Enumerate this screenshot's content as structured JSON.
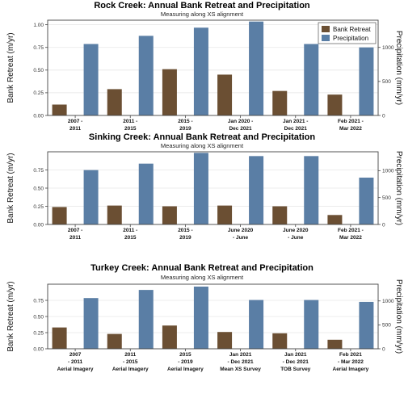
{
  "colors": {
    "bank_retreat": "#6b4f33",
    "precipitation": "#5a7ea5",
    "grid": "#e6e6e6",
    "frame": "#444444"
  },
  "chart_data": [
    {
      "type": "bar",
      "title": "Rock Creek: Annual Bank Retreat and Precipitation",
      "subtitle": "Measuring along XS alignment",
      "ylabel": "Bank Retreat (m/yr)",
      "y2label": "Precipitation (mm/yr)",
      "ylim": [
        0,
        1.05
      ],
      "y2lim": [
        0,
        1400
      ],
      "yticks": [
        "0.00",
        "0.25",
        "0.50",
        "0.75",
        "1.00"
      ],
      "y2ticks": [
        "0",
        "500",
        "1000"
      ],
      "legend": {
        "placement": "top-right",
        "entries": [
          "Bank Retreat",
          "Precipitation"
        ]
      },
      "categories": [
        [
          "2007 -",
          "2011"
        ],
        [
          "2011 -",
          "2015"
        ],
        [
          "2015 -",
          "2019"
        ],
        [
          "Jan 2020 -",
          "Dec 2021"
        ],
        [
          "Jan 2021 -",
          "Dec 2021"
        ],
        [
          "Feb 2021 -",
          "Mar 2022"
        ]
      ],
      "series": [
        {
          "name": "Bank Retreat",
          "axis": "left",
          "values": [
            0.12,
            0.29,
            0.51,
            0.45,
            0.27,
            0.23
          ]
        },
        {
          "name": "Precipitation",
          "axis": "right",
          "values": [
            1050,
            1170,
            1290,
            1380,
            1050,
            1000
          ]
        }
      ]
    },
    {
      "type": "bar",
      "title": "Sinking Creek: Annual Bank Retreat and Precipitation",
      "subtitle": "Measuring along XS alignment",
      "ylabel": "Bank Retreat (m/yr)",
      "y2label": "Precipitation (mm/yr)",
      "ylim": [
        0,
        1.0
      ],
      "y2lim": [
        0,
        1350
      ],
      "yticks": [
        "0.00",
        "0.25",
        "0.50",
        "0.75"
      ],
      "y2ticks": [
        "0",
        "500",
        "1000"
      ],
      "categories": [
        [
          "2007 -",
          "2011"
        ],
        [
          "2011 -",
          "2015"
        ],
        [
          "2015 -",
          "2019"
        ],
        [
          "June 2020",
          "- June"
        ],
        [
          "June 2020",
          "- June"
        ],
        [
          "Feb 2021 -",
          "Mar 2022"
        ]
      ],
      "series": [
        {
          "name": "Bank Retreat",
          "axis": "left",
          "values": [
            0.24,
            0.26,
            0.25,
            0.26,
            0.25,
            0.13
          ]
        },
        {
          "name": "Precipitation",
          "axis": "right",
          "values": [
            1010,
            1130,
            1330,
            1270,
            1270,
            870
          ]
        }
      ]
    },
    {
      "type": "bar",
      "title": "Turkey Creek: Annual Bank Retreat and Precipitation",
      "subtitle": "Measuring along XS alignment",
      "ylabel": "Bank Retreat (m/yr)",
      "y2label": "Precipitation (mm/yr)",
      "ylim": [
        0,
        1.0
      ],
      "y2lim": [
        0,
        1350
      ],
      "yticks": [
        "0.00",
        "0.25",
        "0.50",
        "0.75"
      ],
      "y2ticks": [
        "0",
        "500",
        "1000"
      ],
      "categories": [
        [
          "2007",
          "- 2011",
          "Aerial Imagery"
        ],
        [
          "2011",
          "- 2015",
          "Aerial Imagery"
        ],
        [
          "2015",
          "- 2019",
          "Aerial Imagery"
        ],
        [
          "Jan 2021",
          "- Dec 2021",
          "Mean XS Survey"
        ],
        [
          "Jan 2021",
          "- Dec 2021",
          "TOB Survey"
        ],
        [
          "Feb 2021",
          "- Mar 2022",
          "Aerial Imagery"
        ]
      ],
      "series": [
        {
          "name": "Bank Retreat",
          "axis": "left",
          "values": [
            0.33,
            0.23,
            0.36,
            0.26,
            0.24,
            0.14
          ]
        },
        {
          "name": "Precipitation",
          "axis": "right",
          "values": [
            1060,
            1230,
            1300,
            1020,
            1020,
            980
          ]
        }
      ]
    }
  ]
}
